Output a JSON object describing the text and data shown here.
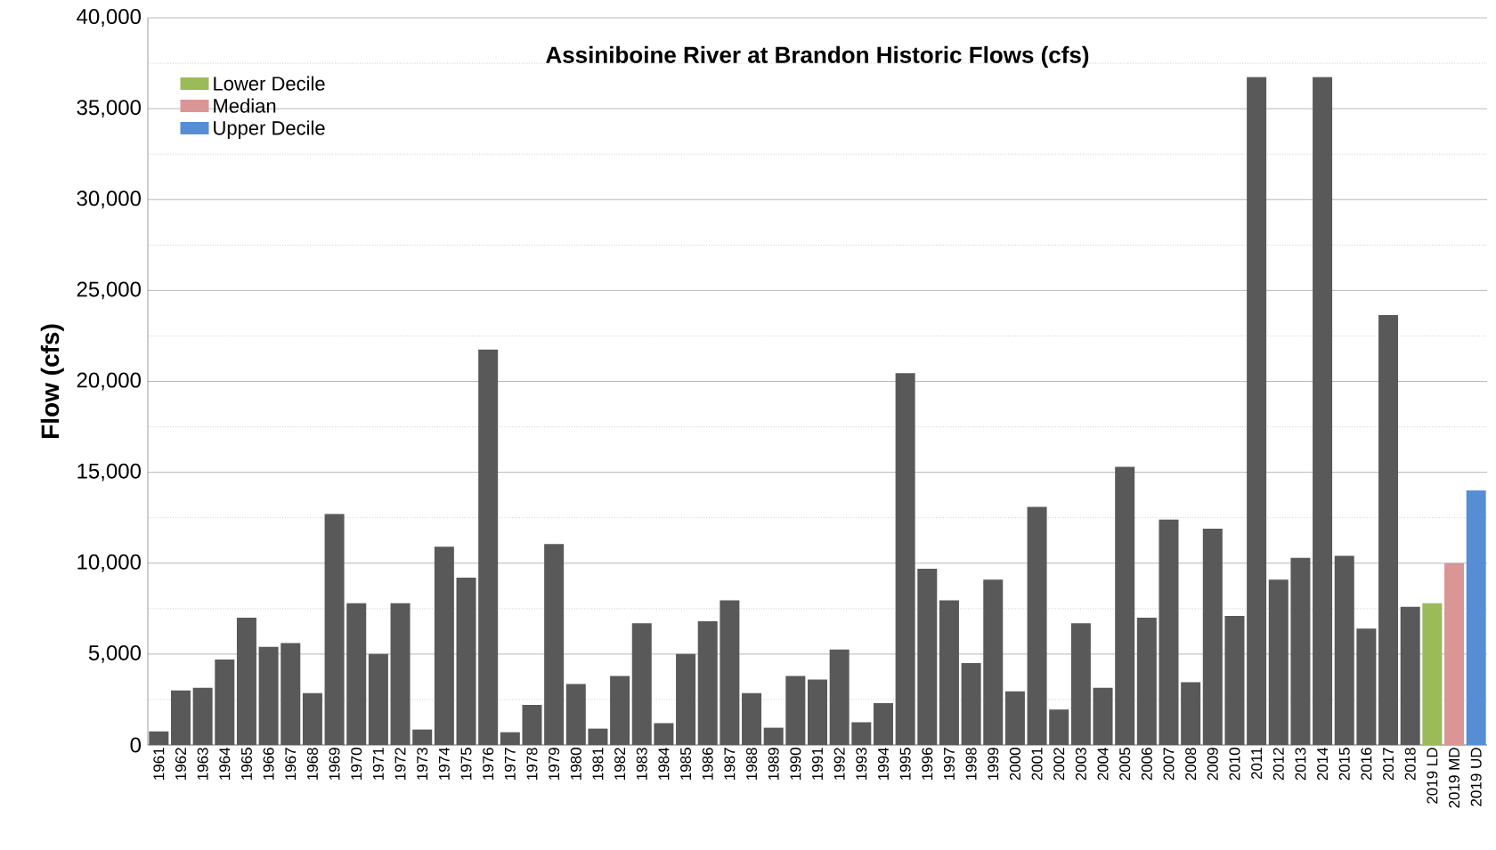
{
  "chart_data": {
    "type": "bar",
    "title": "Assiniboine River at Brandon Historic Flows (cfs)",
    "ylabel": "Flow (cfs)",
    "categories": [
      "1961",
      "1962",
      "1963",
      "1964",
      "1965",
      "1966",
      "1967",
      "1968",
      "1969",
      "1970",
      "1971",
      "1972",
      "1973",
      "1974",
      "1975",
      "1976",
      "1977",
      "1978",
      "1979",
      "1980",
      "1981",
      "1982",
      "1983",
      "1984",
      "1985",
      "1986",
      "1987",
      "1988",
      "1989",
      "1990",
      "1991",
      "1992",
      "1993",
      "1994",
      "1995",
      "1996",
      "1997",
      "1998",
      "1999",
      "2000",
      "2001",
      "2002",
      "2003",
      "2004",
      "2005",
      "2006",
      "2007",
      "2008",
      "2009",
      "2010",
      "2011",
      "2012",
      "2013",
      "2014",
      "2015",
      "2016",
      "2017",
      "2018",
      "2019 LD",
      "2019 MD",
      "2019 UD"
    ],
    "series": [
      {
        "color": "#595959",
        "values": [
          750,
          3000,
          3150,
          4700,
          7000,
          5400,
          5600,
          2850,
          12700,
          7800,
          5000,
          7800,
          850,
          10900,
          9200,
          21750,
          700,
          2200,
          11050,
          3350,
          900,
          3800,
          6700,
          1200,
          5000,
          6800,
          7950,
          2850,
          950,
          3800,
          3600,
          5250,
          1250,
          2300,
          20450,
          9700,
          7950,
          4500,
          9100,
          2950,
          13100,
          1950,
          6700,
          3150,
          15300,
          7000,
          12400,
          3450,
          11900,
          7100,
          36750,
          9100,
          10300,
          36750,
          10400,
          6400,
          23650,
          7600,
          null,
          null,
          null
        ]
      },
      {
        "name": "Lower Decile",
        "color": "#9bbb59",
        "values": [
          null,
          null,
          null,
          null,
          null,
          null,
          null,
          null,
          null,
          null,
          null,
          null,
          null,
          null,
          null,
          null,
          null,
          null,
          null,
          null,
          null,
          null,
          null,
          null,
          null,
          null,
          null,
          null,
          null,
          null,
          null,
          null,
          null,
          null,
          null,
          null,
          null,
          null,
          null,
          null,
          null,
          null,
          null,
          null,
          null,
          null,
          null,
          null,
          null,
          null,
          null,
          null,
          null,
          null,
          null,
          null,
          null,
          null,
          7800,
          null,
          null
        ]
      },
      {
        "name": "Median",
        "color": "#d99694",
        "values": [
          null,
          null,
          null,
          null,
          null,
          null,
          null,
          null,
          null,
          null,
          null,
          null,
          null,
          null,
          null,
          null,
          null,
          null,
          null,
          null,
          null,
          null,
          null,
          null,
          null,
          null,
          null,
          null,
          null,
          null,
          null,
          null,
          null,
          null,
          null,
          null,
          null,
          null,
          null,
          null,
          null,
          null,
          null,
          null,
          null,
          null,
          null,
          null,
          null,
          null,
          null,
          null,
          null,
          null,
          null,
          null,
          null,
          null,
          null,
          10000,
          null
        ]
      },
      {
        "name": "Upper Decile",
        "color": "#558ed5",
        "values": [
          null,
          null,
          null,
          null,
          null,
          null,
          null,
          null,
          null,
          null,
          null,
          null,
          null,
          null,
          null,
          null,
          null,
          null,
          null,
          null,
          null,
          null,
          null,
          null,
          null,
          null,
          null,
          null,
          null,
          null,
          null,
          null,
          null,
          null,
          null,
          null,
          null,
          null,
          null,
          null,
          null,
          null,
          null,
          null,
          null,
          null,
          null,
          null,
          null,
          null,
          null,
          null,
          null,
          null,
          null,
          null,
          null,
          null,
          null,
          null,
          14000
        ]
      }
    ],
    "ylim": [
      0,
      40000
    ],
    "yticks": [
      {
        "value": 0,
        "label": "0"
      },
      {
        "value": 5000,
        "label": "5,000"
      },
      {
        "value": 10000,
        "label": "10,000"
      },
      {
        "value": 15000,
        "label": "15,000"
      },
      {
        "value": 20000,
        "label": "20,000"
      },
      {
        "value": 25000,
        "label": "25,000"
      },
      {
        "value": 30000,
        "label": "30,000"
      },
      {
        "value": 35000,
        "label": "35,000"
      },
      {
        "value": 40000,
        "label": "40,000"
      }
    ],
    "grid": "y",
    "legend": "top left"
  }
}
